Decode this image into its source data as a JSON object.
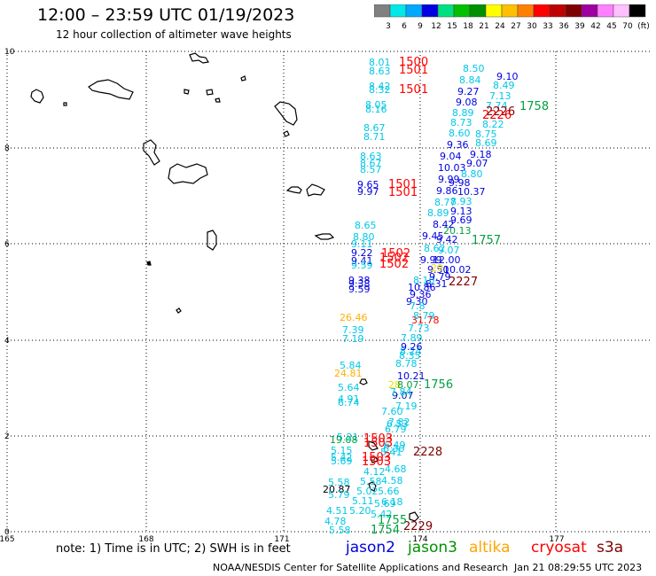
{
  "header": {
    "title": "12:00 – 23:59 UTC 01/19/2023",
    "subtitle": "12 hour collection of altimeter wave heights"
  },
  "legend": {
    "colors": [
      "#808080",
      "#00e8e8",
      "#00a8ff",
      "#0000e0",
      "#00e080",
      "#00c000",
      "#009000",
      "#ffff00",
      "#ffc000",
      "#ff8000",
      "#ff0000",
      "#c00000",
      "#800000",
      "#a000a0",
      "#ff80ff",
      "#ffc0ff",
      "#000000"
    ],
    "labels": [
      "3",
      "6",
      "9",
      "12",
      "15",
      "18",
      "21",
      "24",
      "27",
      "30",
      "33",
      "36",
      "39",
      "42",
      "45",
      "70",
      "(ft)"
    ]
  },
  "axes": {
    "x_labels": [
      "165",
      "168",
      "171",
      "174",
      "177"
    ],
    "y_labels": [
      "0",
      "2",
      "4",
      "6",
      "8",
      "10"
    ]
  },
  "colors": {
    "jason2": "#0000e0",
    "jason3": "#009000",
    "altika": "#ffa500",
    "cryosat": "#ff0000",
    "s3a": "#800000",
    "c_cyan": "#00c8e8",
    "c_blue": "#0000e0",
    "c_dblue": "#0020a0",
    "c_green": "#00a040",
    "c_orange": "#ffb000",
    "c_red": "#ff0000",
    "c_maroon": "#800000"
  },
  "labels": [
    {
      "t": "8.01",
      "c": "c_cyan"
    },
    {
      "t": "8.63",
      "c": "c_cyan"
    },
    {
      "t": "8.42",
      "c": "c_cyan"
    },
    {
      "t": "8.32",
      "c": "c_cyan"
    },
    {
      "t": "8.05",
      "c": "c_cyan"
    },
    {
      "t": "8.16",
      "c": "c_cyan"
    },
    {
      "t": "8.67",
      "c": "c_cyan"
    },
    {
      "t": "8.71",
      "c": "c_cyan"
    },
    {
      "t": "8.63",
      "c": "c_cyan"
    },
    {
      "t": "8.67",
      "c": "c_cyan"
    },
    {
      "t": "8.57",
      "c": "c_cyan"
    },
    {
      "t": "9.65",
      "c": "c_blue"
    },
    {
      "t": "9.97",
      "c": "c_blue"
    },
    {
      "t": "8.65",
      "c": "c_cyan"
    },
    {
      "t": "8.80",
      "c": "c_cyan"
    },
    {
      "t": "9.11",
      "c": "c_cyan"
    },
    {
      "t": "9.22",
      "c": "c_blue"
    },
    {
      "t": "9.41",
      "c": "c_blue"
    },
    {
      "t": "9.59",
      "c": "c_cyan"
    },
    {
      "t": "9.38",
      "c": "c_blue"
    },
    {
      "t": "9.38",
      "c": "c_blue"
    },
    {
      "t": "9.59",
      "c": "c_blue"
    },
    {
      "t": "26.46",
      "c": "c_orange"
    },
    {
      "t": "7.39",
      "c": "c_cyan"
    },
    {
      "t": "7.19",
      "c": "c_cyan"
    },
    {
      "t": "5.84",
      "c": "c_cyan"
    },
    {
      "t": "24.81",
      "c": "c_orange"
    },
    {
      "t": "5.64",
      "c": "c_cyan"
    },
    {
      "t": "4.91",
      "c": "c_cyan"
    },
    {
      "t": "6.74",
      "c": "c_cyan"
    },
    {
      "t": "5.21",
      "c": "c_cyan"
    },
    {
      "t": "19.08",
      "c": "c_green"
    },
    {
      "t": "5.15",
      "c": "c_cyan"
    },
    {
      "t": "5.42",
      "c": "c_cyan"
    },
    {
      "t": "5.69",
      "c": "c_cyan"
    },
    {
      "t": "5.58",
      "c": "c_cyan"
    },
    {
      "t": "20.87",
      "c": "#000000"
    },
    {
      "t": "5.79",
      "c": "c_cyan"
    },
    {
      "t": "4.51",
      "c": "c_cyan"
    },
    {
      "t": "4.78",
      "c": "c_cyan"
    },
    {
      "t": "5.58",
      "c": "c_cyan"
    },
    {
      "t": "5.20",
      "c": "c_cyan"
    },
    {
      "t": "5.42",
      "c": "c_cyan"
    },
    {
      "t": "5.11",
      "c": "c_cyan"
    },
    {
      "t": "5.69",
      "c": "c_cyan"
    },
    {
      "t": "5.66",
      "c": "c_cyan"
    },
    {
      "t": "6.18",
      "c": "c_cyan"
    },
    {
      "t": "5.02",
      "c": "c_cyan"
    },
    {
      "t": "5.58",
      "c": "c_cyan"
    },
    {
      "t": "4.58",
      "c": "c_cyan"
    },
    {
      "t": "4.12",
      "c": "c_cyan"
    },
    {
      "t": "4.68",
      "c": "c_cyan"
    },
    {
      "t": "5.41",
      "c": "c_cyan"
    },
    {
      "t": "6.30",
      "c": "c_cyan"
    },
    {
      "t": "6.49",
      "c": "c_cyan"
    },
    {
      "t": "6.79",
      "c": "c_cyan"
    },
    {
      "t": "6.53",
      "c": "c_cyan"
    },
    {
      "t": "7.60",
      "c": "c_cyan"
    },
    {
      "t": "7.19",
      "c": "c_cyan"
    },
    {
      "t": "7.82",
      "c": "c_cyan"
    },
    {
      "t": "9.07",
      "c": "c_dblue"
    },
    {
      "t": "28",
      "c": "#e8e000"
    },
    {
      "t": "8.07",
      "c": "c_green"
    },
    {
      "t": "7.84",
      "c": "c_cyan"
    },
    {
      "t": "10.21",
      "c": "c_blue"
    },
    {
      "t": "8.78",
      "c": "c_cyan"
    },
    {
      "t": "8.35",
      "c": "c_cyan"
    },
    {
      "t": "8.24",
      "c": "c_cyan"
    },
    {
      "t": "9.26",
      "c": "c_blue"
    },
    {
      "t": "7.89",
      "c": "c_cyan"
    },
    {
      "t": "7.73",
      "c": "c_cyan"
    },
    {
      "t": "31.78",
      "c": "c_red"
    },
    {
      "t": "8.79",
      "c": "c_cyan"
    },
    {
      "t": "9.30",
      "c": "c_blue"
    },
    {
      "t": "7.8",
      "c": "c_cyan"
    },
    {
      "t": "9.36",
      "c": "c_blue"
    },
    {
      "t": "10.86",
      "c": "c_blue"
    },
    {
      "t": "8.31",
      "c": "c_blue"
    },
    {
      "t": "9.50",
      "c": "c_blue"
    },
    {
      "t": "29",
      "c": "#e8e000"
    },
    {
      "t": "8.10",
      "c": "c_cyan"
    },
    {
      "t": "10.02",
      "c": "c_blue"
    },
    {
      "t": "9.79",
      "c": "c_blue"
    },
    {
      "t": "9.99",
      "c": "c_blue"
    },
    {
      "t": "12.00",
      "c": "c_blue"
    },
    {
      "t": "8.62",
      "c": "c_cyan"
    },
    {
      "t": "9.07",
      "c": "c_cyan"
    },
    {
      "t": "9.45",
      "c": "c_blue"
    },
    {
      "t": "9.42",
      "c": "c_blue"
    },
    {
      "t": "20.13",
      "c": "c_green"
    },
    {
      "t": "8.42",
      "c": "c_blue"
    },
    {
      "t": "9.69",
      "c": "c_blue"
    },
    {
      "t": "8.89",
      "c": "c_cyan"
    },
    {
      "t": "9.13",
      "c": "c_blue"
    },
    {
      "t": "8.77",
      "c": "c_cyan"
    },
    {
      "t": "8.93",
      "c": "c_cyan"
    },
    {
      "t": "9.86",
      "c": "c_blue"
    },
    {
      "t": "10.37",
      "c": "c_blue"
    },
    {
      "t": "9.99",
      "c": "c_blue"
    },
    {
      "t": "9.98",
      "c": "c_blue"
    },
    {
      "t": "10.03",
      "c": "c_blue"
    },
    {
      "t": "9.07",
      "c": "c_blue"
    },
    {
      "t": "8.80",
      "c": "c_cyan"
    },
    {
      "t": "9.04",
      "c": "c_blue"
    },
    {
      "t": "9.18",
      "c": "c_blue"
    },
    {
      "t": "9.36",
      "c": "c_blue"
    },
    {
      "t": "8.69",
      "c": "c_cyan"
    },
    {
      "t": "8.60",
      "c": "c_cyan"
    },
    {
      "t": "8.75",
      "c": "c_cyan"
    },
    {
      "t": "8.73",
      "c": "c_cyan"
    },
    {
      "t": "8.22",
      "c": "c_cyan"
    },
    {
      "t": "8.89",
      "c": "c_cyan"
    },
    {
      "t": "7.74",
      "c": "c_cyan"
    },
    {
      "t": "9.08",
      "c": "c_blue"
    },
    {
      "t": "7.13",
      "c": "c_cyan"
    },
    {
      "t": "9.27",
      "c": "c_blue"
    },
    {
      "t": "8.49",
      "c": "c_cyan"
    },
    {
      "t": "8.84",
      "c": "c_cyan"
    },
    {
      "t": "9.10",
      "c": "c_blue"
    },
    {
      "t": "8.50",
      "c": "c_cyan"
    }
  ],
  "passes": [
    {
      "t": "1500",
      "c": "c_red"
    },
    {
      "t": "1501",
      "c": "c_red"
    },
    {
      "t": "1501",
      "c": "c_red"
    },
    {
      "t": "1501",
      "c": "c_red"
    },
    {
      "t": "1501",
      "c": "c_red"
    },
    {
      "t": "1502",
      "c": "c_red"
    },
    {
      "t": "1502",
      "c": "c_red"
    },
    {
      "t": "1502",
      "c": "c_red"
    },
    {
      "t": "1503",
      "c": "c_red"
    },
    {
      "t": "1503",
      "c": "c_red"
    },
    {
      "t": "1503",
      "c": "c_red"
    },
    {
      "t": "1503",
      "c": "c_red"
    },
    {
      "t": "2226",
      "c": "c_maroon"
    },
    {
      "t": "2226",
      "c": "c_red"
    },
    {
      "t": "2227",
      "c": "c_maroon"
    },
    {
      "t": "2228",
      "c": "c_maroon"
    },
    {
      "t": "2229",
      "c": "c_maroon"
    },
    {
      "t": "1758",
      "c": "c_green"
    },
    {
      "t": "1757",
      "c": "c_green"
    },
    {
      "t": "1756",
      "c": "c_green"
    },
    {
      "t": "1755",
      "c": "c_green"
    },
    {
      "t": "1754",
      "c": "c_green"
    }
  ],
  "footer": {
    "note": "note: 1) Time is in UTC; 2) SWH is in feet",
    "sats": [
      "jason2",
      "jason3",
      "altika",
      "cryosat",
      "s3a"
    ],
    "credit": "NOAA/NESDIS Center for Satellite Applications and Research",
    "timestamp": "Jan 21 08:29:55 UTC 2023"
  }
}
